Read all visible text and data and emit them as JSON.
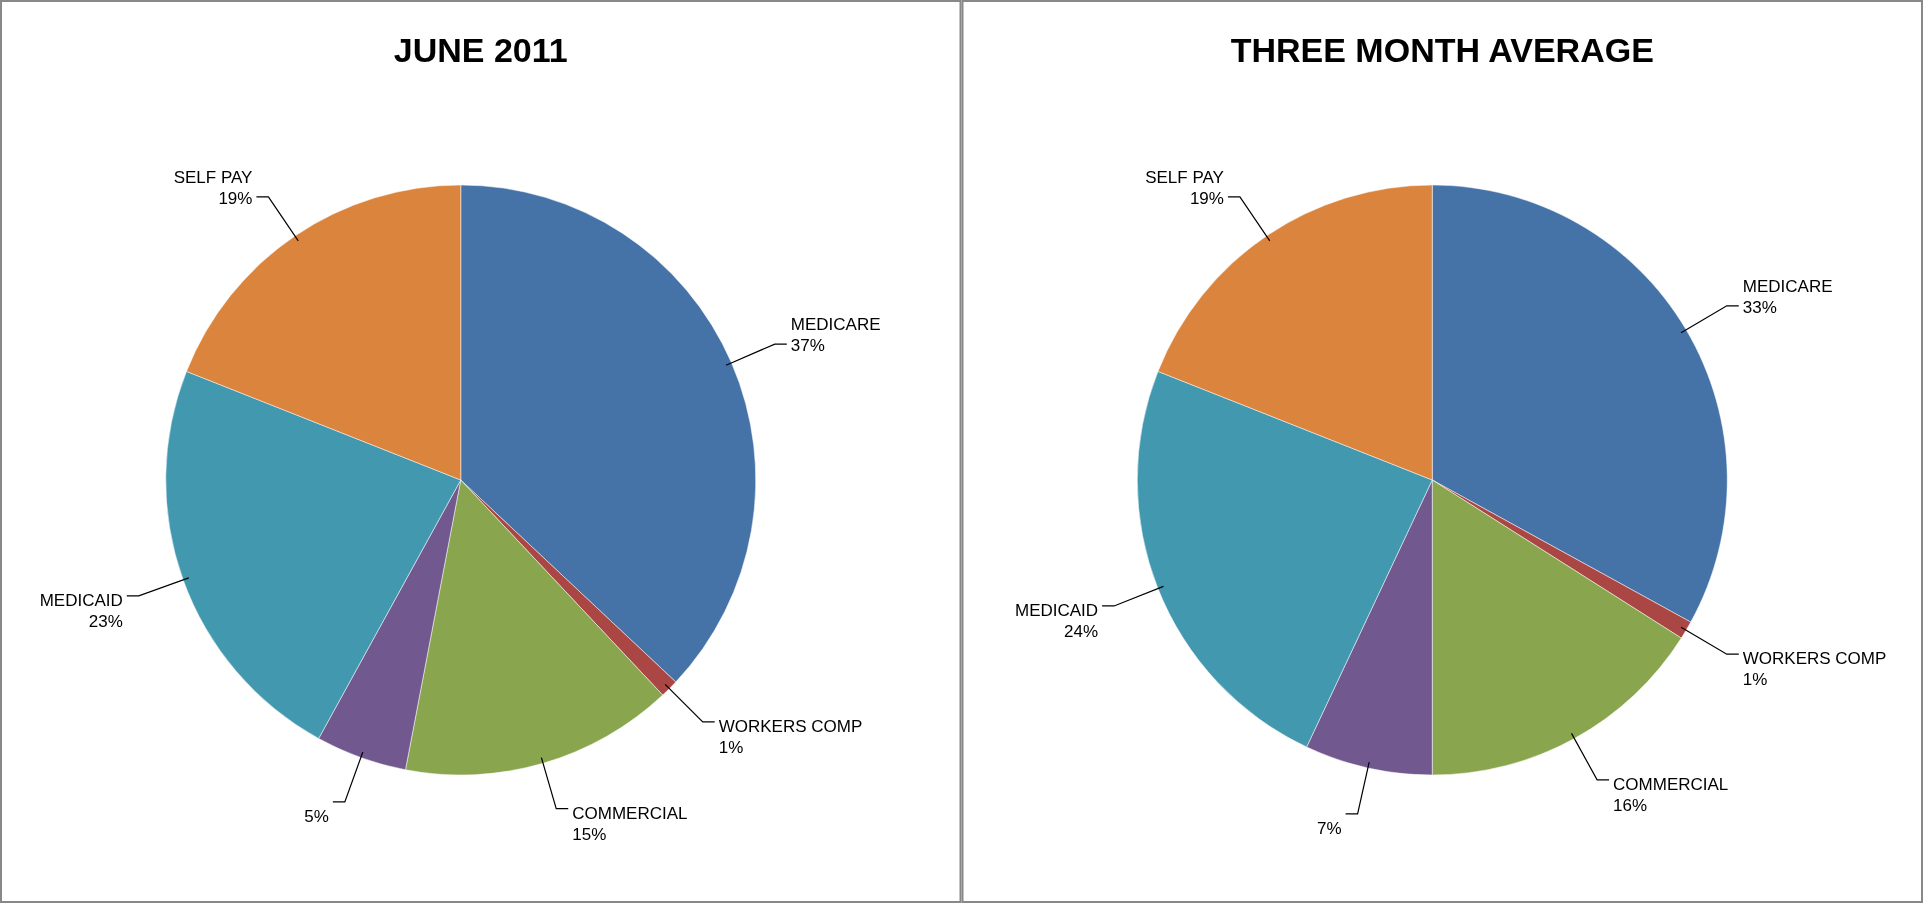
{
  "chart_data": [
    {
      "type": "pie",
      "title": "JUNE 2011",
      "categories": [
        "MEDICARE",
        "WORKERS COMP",
        "COMMERCIAL",
        null,
        "MEDICAID",
        "SELF PAY"
      ],
      "values": [
        37,
        1,
        15,
        5,
        23,
        19
      ],
      "value_labels": [
        "37%",
        "1%",
        "15%",
        "5%",
        "23%",
        "19%"
      ],
      "colors": [
        "#4572a7",
        "#aa4643",
        "#89a54e",
        "#71588f",
        "#4198af",
        "#db843d"
      ],
      "legend": false
    },
    {
      "type": "pie",
      "title": "THREE MONTH AVERAGE",
      "categories": [
        "MEDICARE",
        "WORKERS COMP",
        "COMMERCIAL",
        null,
        "MEDICAID",
        "SELF PAY"
      ],
      "values": [
        33,
        1,
        16,
        7,
        24,
        19
      ],
      "value_labels": [
        "33%",
        "1%",
        "16%",
        "7%",
        "24%",
        "19%"
      ],
      "colors": [
        "#4572a7",
        "#aa4643",
        "#89a54e",
        "#71588f",
        "#4198af",
        "#db843d"
      ],
      "legend": false
    }
  ]
}
